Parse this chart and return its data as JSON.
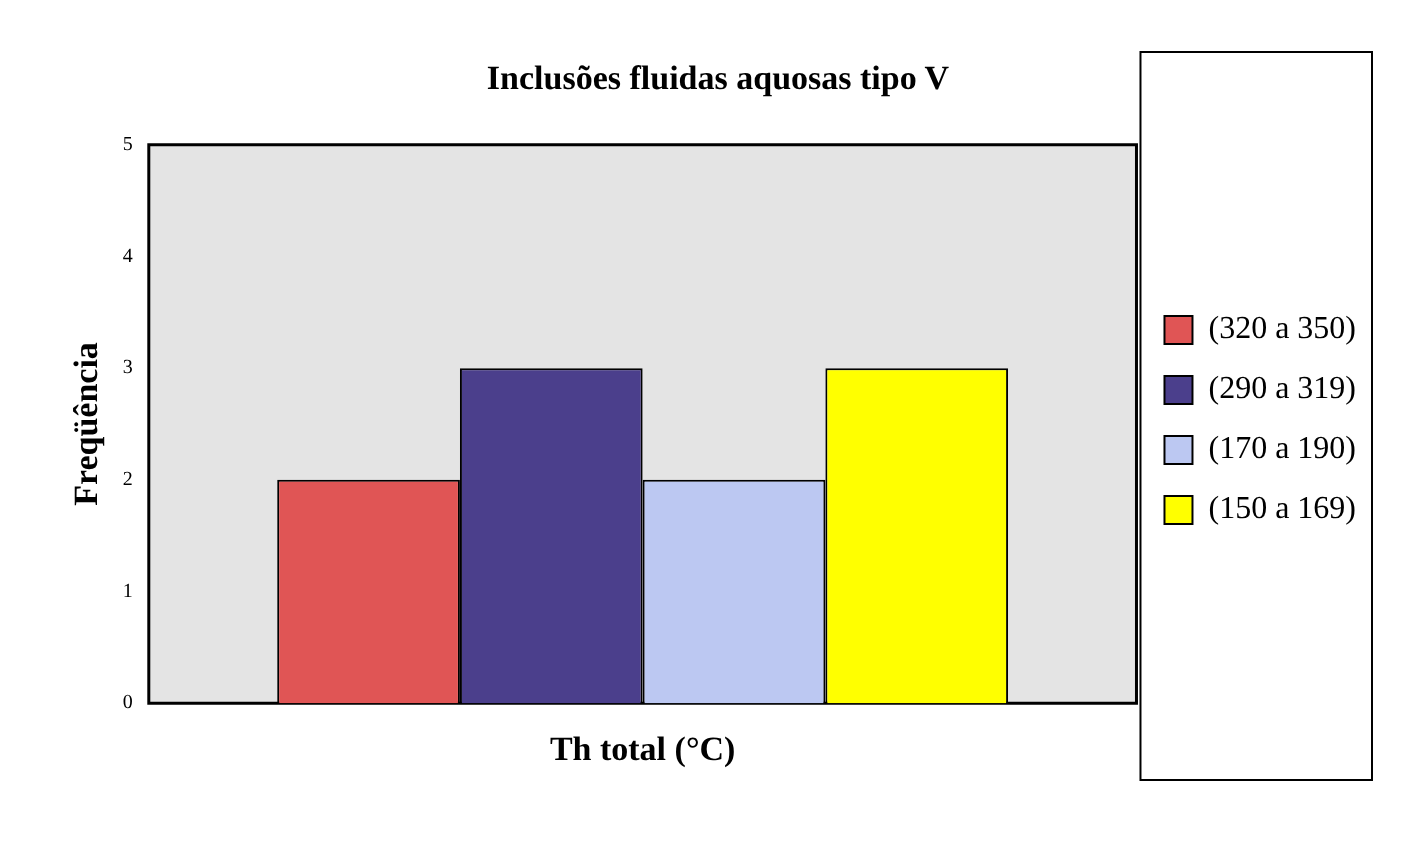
{
  "chart_data": {
    "type": "bar",
    "title": "Inclusões fluidas aquosas tipo V",
    "xlabel": "Th total (°C)",
    "ylabel": "Freqüência",
    "categories": [
      null
    ],
    "series": [
      {
        "name": "(320 a 350)",
        "color": "#e05555",
        "values": [
          2
        ]
      },
      {
        "name": "(290 a 319)",
        "color": "#4b3f8c",
        "values": [
          3
        ]
      },
      {
        "name": "(170 a 190)",
        "color": "#bcc8f2",
        "values": [
          2
        ]
      },
      {
        "name": "(150 a 169)",
        "color": "#ffff00",
        "values": [
          3
        ]
      }
    ],
    "ylim": [
      0,
      5
    ],
    "yticks": [
      0,
      1,
      2,
      3,
      4,
      5
    ],
    "grid": false,
    "legend": "right"
  }
}
